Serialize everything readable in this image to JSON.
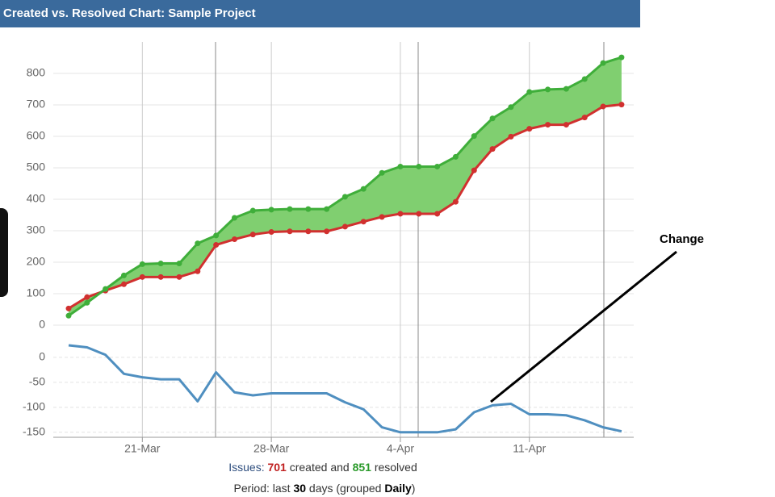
{
  "header": {
    "title": "Created vs. Resolved Chart: Sample Project"
  },
  "chart_data": [
    {
      "type": "area",
      "series": [
        {
          "name": "created",
          "color": "#d1302f",
          "values": [
            53,
            89,
            110,
            130,
            153,
            153,
            153,
            171,
            255,
            273,
            288,
            296,
            298,
            298,
            298,
            313,
            329,
            344,
            354,
            354,
            354,
            392,
            492,
            560,
            599,
            624,
            637,
            637,
            660,
            695,
            701
          ]
        },
        {
          "name": "resolved",
          "color": "#3fae3a",
          "values": [
            30,
            71,
            115,
            158,
            194,
            196,
            196,
            260,
            285,
            341,
            364,
            367,
            369,
            369,
            369,
            408,
            433,
            484,
            504,
            504,
            504,
            535,
            601,
            657,
            693,
            741,
            749,
            751,
            782,
            833,
            851
          ]
        }
      ],
      "fill": "#80cf70",
      "ylim": [
        0,
        900
      ],
      "yticks": [
        0,
        100,
        200,
        300,
        400,
        500,
        600,
        700,
        800
      ],
      "grid": true
    },
    {
      "type": "line",
      "categories": [
        null,
        null,
        null,
        null,
        "21-Mar",
        null,
        null,
        null,
        null,
        null,
        null,
        "28-Mar",
        null,
        null,
        null,
        null,
        null,
        null,
        "4-Apr",
        null,
        null,
        null,
        null,
        null,
        null,
        "11-Apr",
        null,
        null,
        null,
        null,
        null
      ],
      "values": [
        24,
        20,
        5,
        -33,
        -40,
        -44,
        -44,
        -88,
        -30,
        -70,
        -76,
        -72,
        -72,
        -72,
        -72,
        -90,
        -104,
        -140,
        -150,
        -150,
        -150,
        -144,
        -110,
        -96,
        -93,
        -114,
        -114,
        -116,
        -126,
        -140,
        -148
      ],
      "color": "#4f8fc0",
      "ylim": [
        -160,
        45
      ],
      "yticks": [
        -150,
        -100,
        -50,
        0
      ],
      "grid": true
    }
  ],
  "footer": {
    "issues": "Issues: ",
    "created_and": " created and ",
    "resolved": " resolved",
    "period": "Period: last ",
    "days": 30,
    "grouped": " days (grouped ",
    "daily": "Daily",
    "close": ")"
  },
  "annotation": "Change"
}
